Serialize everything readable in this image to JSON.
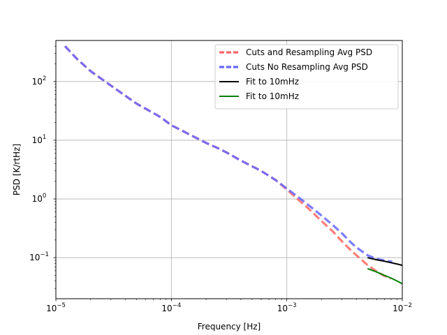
{
  "chart_data": {
    "type": "line",
    "title": "",
    "xlabel": "Frequency [Hz]",
    "ylabel": "PSD [K/rtHz]",
    "xscale": "log",
    "yscale": "log",
    "xlim": [
      1e-05,
      0.01
    ],
    "ylim": [
      0.02,
      500
    ],
    "grid": true,
    "legend_position": "top-right",
    "x_ticks": [
      {
        "value": 1e-05,
        "base": "10",
        "exp": "−5"
      },
      {
        "value": 0.0001,
        "base": "10",
        "exp": "−4"
      },
      {
        "value": 0.001,
        "base": "10",
        "exp": "−3"
      },
      {
        "value": 0.01,
        "base": "10",
        "exp": "−2"
      }
    ],
    "y_ticks": [
      {
        "value": 0.1,
        "base": "10",
        "exp": "−1"
      },
      {
        "value": 1,
        "base": "10",
        "exp": "0"
      },
      {
        "value": 10,
        "base": "10",
        "exp": "1"
      },
      {
        "value": 100,
        "base": "10",
        "exp": "2"
      }
    ],
    "series": [
      {
        "name": "Cuts and Resampling Avg PSD",
        "color": "#ff6666",
        "style": "dashed",
        "x": [
          1.2e-05,
          1.5e-05,
          2e-05,
          3e-05,
          5e-05,
          8e-05,
          0.0001,
          0.00015,
          0.0002,
          0.00025,
          0.0003,
          0.0004,
          0.0005,
          0.0006,
          0.0008,
          0.001,
          0.0012,
          0.0015,
          0.002,
          0.0025,
          0.003,
          0.0035,
          0.004,
          0.005,
          0.006,
          0.007,
          0.008
        ],
        "y": [
          400,
          250,
          150,
          85,
          42,
          25,
          18,
          12,
          9,
          7.4,
          6.2,
          4.5,
          3.6,
          3.0,
          2.1,
          1.45,
          1.05,
          0.72,
          0.42,
          0.28,
          0.19,
          0.14,
          0.11,
          0.075,
          0.058,
          0.049,
          0.044
        ]
      },
      {
        "name": "Cuts No Resampling Avg PSD",
        "color": "#6666ff",
        "style": "dashed",
        "x": [
          1.2e-05,
          1.5e-05,
          2e-05,
          3e-05,
          5e-05,
          8e-05,
          0.0001,
          0.00015,
          0.0002,
          0.00025,
          0.0003,
          0.0004,
          0.0005,
          0.0006,
          0.0008,
          0.001,
          0.0012,
          0.0015,
          0.002,
          0.0025,
          0.003,
          0.0035,
          0.004,
          0.005,
          0.006,
          0.007,
          0.0082
        ],
        "y": [
          400,
          250,
          150,
          85,
          42,
          25,
          18,
          12,
          9,
          7.4,
          6.2,
          4.5,
          3.6,
          3.0,
          2.1,
          1.5,
          1.15,
          0.82,
          0.52,
          0.36,
          0.26,
          0.19,
          0.15,
          0.11,
          0.095,
          0.09,
          0.085
        ]
      },
      {
        "name": "Fit to 10mHz",
        "color": "#000000",
        "style": "solid",
        "x": [
          0.005,
          0.006,
          0.007,
          0.008,
          0.009,
          0.01
        ],
        "y": [
          0.1,
          0.092,
          0.087,
          0.082,
          0.078,
          0.074
        ]
      },
      {
        "name": "Fit to 10mHz",
        "color": "#008000",
        "style": "solid",
        "x": [
          0.005,
          0.006,
          0.007,
          0.008,
          0.009,
          0.01
        ],
        "y": [
          0.065,
          0.057,
          0.05,
          0.045,
          0.04,
          0.036
        ]
      }
    ]
  }
}
